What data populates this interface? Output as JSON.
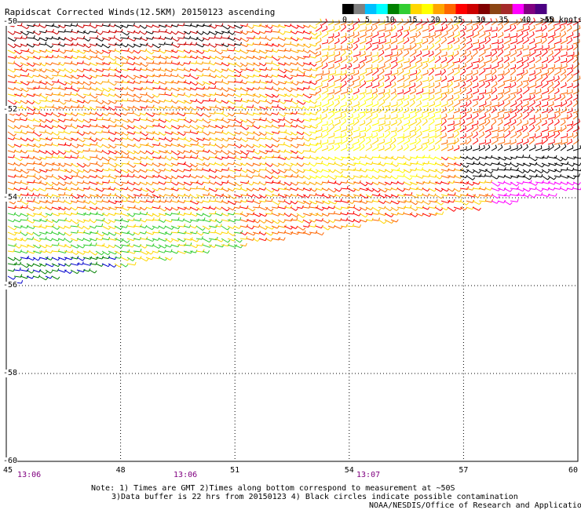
{
  "title": "Rapidscat Corrected Winds(12.5KM) 20150123 ascending",
  "legend": {
    "unit": ">50 knots",
    "ticks": [
      "0",
      "5",
      "10",
      "15",
      "20",
      "25",
      "30",
      "35",
      "40",
      "45"
    ],
    "colors": [
      "#000000",
      "#808080",
      "#00bfff",
      "#00ffff",
      "#008000",
      "#32cd32",
      "#ffd700",
      "#ffff00",
      "#ffa500",
      "#ff6600",
      "#ff0000",
      "#cc0000",
      "#800000",
      "#8b4513",
      "#a52a2a",
      "#ff00ff",
      "#800080",
      "#4b0082"
    ]
  },
  "chart_data": {
    "type": "map",
    "lat_labels": [
      "-50",
      "-52",
      "-54",
      "-56",
      "-58",
      "-60"
    ],
    "lon_labels": [
      "45",
      "48",
      "51",
      "54",
      "57",
      "60"
    ],
    "time_labels": [
      "13:06",
      "13:06",
      "13:07"
    ],
    "lat_range": [
      -60,
      -50
    ],
    "lon_range": [
      45,
      60
    ],
    "grid": true
  },
  "notes": {
    "line1": "Note: 1) Times are GMT 2)Times along bottom correspond to measurement at ~50S",
    "line2": "3)Data buffer is 22 hrs from 20150123 4) Black circles indicate possible contamination",
    "credit": "NOAA/NESDIS/Office of Research and Applications"
  }
}
